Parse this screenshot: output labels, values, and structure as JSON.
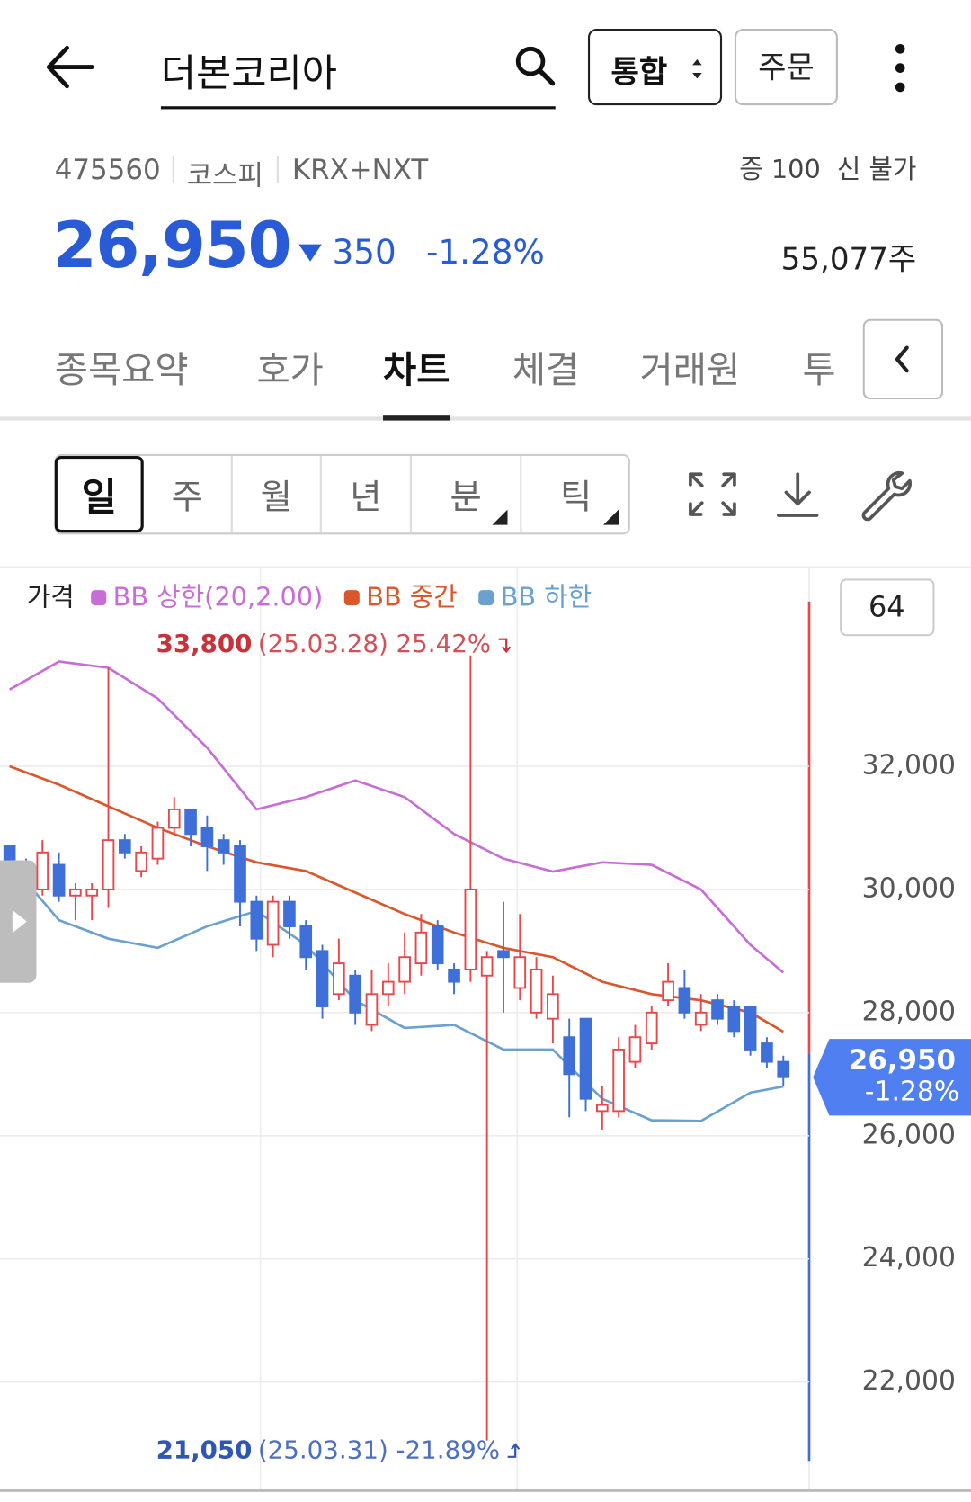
{
  "header": {
    "title": "더본코리아",
    "mode": "통합",
    "order": "주문"
  },
  "quote": {
    "code": "475560",
    "market": "코스피",
    "venue": "KRX+NXT",
    "margin": "증 100",
    "credit": "신 불가",
    "price": "26,950",
    "change": "350",
    "change_pct": "-1.28%",
    "volume": "55,077주"
  },
  "tabs": [
    "종목요약",
    "호가",
    "차트",
    "체결",
    "거래원",
    "투"
  ],
  "active_tab": 2,
  "periods": [
    "일",
    "주",
    "월",
    "년",
    "분",
    "틱"
  ],
  "active_period": 0,
  "chart_data": {
    "type": "candlestick",
    "price_label": "가격",
    "count_box": "64",
    "up_color": "#e8474c",
    "down_color": "#3f6fd8",
    "x": [
      0,
      1,
      2,
      3,
      4,
      5,
      6,
      7,
      8,
      9,
      10,
      11,
      12,
      13,
      14,
      15,
      16,
      17,
      18,
      19,
      20,
      21,
      22,
      23,
      24,
      25,
      26,
      27,
      28,
      29,
      30,
      31,
      32,
      33,
      34,
      35,
      36,
      37,
      38,
      39,
      40,
      41,
      42,
      43,
      44,
      45,
      46,
      47
    ],
    "xlim": [
      0,
      47
    ],
    "candles": {
      "open": [
        30700,
        30400,
        30000,
        30400,
        29900,
        29900,
        30000,
        30800,
        30300,
        30500,
        31000,
        31300,
        31000,
        30800,
        30700,
        29800,
        29100,
        29800,
        29400,
        29000,
        28300,
        28600,
        27800,
        28300,
        28500,
        28800,
        29400,
        28700,
        28700,
        28600,
        29000,
        28400,
        28000,
        27900,
        27600,
        27900,
        26400,
        26400,
        27200,
        27500,
        28200,
        28400,
        27800,
        28200,
        28100,
        28100,
        27500,
        27200
      ],
      "high": [
        30700,
        30500,
        30800,
        30600,
        30100,
        30100,
        33600,
        30900,
        30700,
        31100,
        31500,
        31300,
        31200,
        30900,
        30800,
        29900,
        29900,
        29900,
        29500,
        29100,
        29200,
        28700,
        28700,
        28800,
        29300,
        29600,
        29500,
        28800,
        33800,
        29000,
        29800,
        29600,
        28900,
        28600,
        27900,
        27800,
        26800,
        27600,
        27800,
        28100,
        28800,
        28700,
        28300,
        28300,
        28200,
        28100,
        27600,
        27300
      ],
      "low": [
        29400,
        29600,
        29900,
        29800,
        29500,
        29500,
        29700,
        30500,
        30200,
        30400,
        30900,
        30700,
        30300,
        30400,
        29400,
        29000,
        28900,
        29200,
        28700,
        27900,
        28200,
        27800,
        27700,
        28100,
        28300,
        28600,
        28700,
        28300,
        28500,
        21050,
        28000,
        28200,
        27900,
        27500,
        26300,
        26400,
        26100,
        26300,
        27100,
        27400,
        28100,
        27900,
        27700,
        27800,
        27600,
        27300,
        27100,
        26800
      ],
      "close": [
        30300,
        29900,
        30600,
        29900,
        30000,
        30000,
        30800,
        30600,
        30600,
        31000,
        31300,
        30900,
        30700,
        30600,
        29800,
        29200,
        29800,
        29400,
        28900,
        28100,
        28800,
        28000,
        28300,
        28500,
        28900,
        29300,
        28800,
        28500,
        30000,
        28900,
        28900,
        28900,
        28700,
        28300,
        27000,
        26600,
        26500,
        27400,
        27600,
        28000,
        28500,
        28000,
        28000,
        27900,
        27700,
        27400,
        27200,
        26950
      ]
    },
    "series": [
      {
        "name": "BB 상한(20,2.00)",
        "color": "#c86dd7",
        "x": [
          0,
          3,
          6,
          9,
          12,
          15,
          18,
          21,
          24,
          27,
          30,
          33,
          36,
          39,
          42,
          45,
          47
        ],
        "values": [
          33245,
          33700,
          33600,
          33100,
          32300,
          31300,
          31500,
          31770,
          31500,
          30900,
          30500,
          30290,
          30440,
          30400,
          30000,
          29100,
          28650
        ]
      },
      {
        "name": "BB 중간",
        "color": "#d9572b",
        "x": [
          0,
          3,
          6,
          9,
          12,
          15,
          18,
          21,
          24,
          27,
          30,
          33,
          36,
          39,
          42,
          45,
          47
        ],
        "values": [
          32000,
          31700,
          31350,
          31000,
          30700,
          30440,
          30300,
          29950,
          29600,
          29300,
          29050,
          28900,
          28500,
          28300,
          28200,
          28000,
          27690
        ]
      },
      {
        "name": "BB 하한",
        "color": "#6aa1cf",
        "x": [
          0,
          3,
          6,
          9,
          12,
          15,
          18,
          21,
          24,
          27,
          30,
          33,
          36,
          39,
          42,
          45,
          47
        ],
        "values": [
          30440,
          29500,
          29200,
          29050,
          29400,
          29650,
          29100,
          28200,
          27750,
          27800,
          27400,
          27400,
          26600,
          26250,
          26240,
          26700,
          26800
        ]
      }
    ],
    "ylim": [
      20720,
      35110
    ],
    "yticks": [
      {
        "value": 22000,
        "label": "22,000"
      },
      {
        "value": 24000,
        "label": "24,000"
      },
      {
        "value": 26000,
        "label": "26,000"
      },
      {
        "value": 28000,
        "label": "28,000"
      },
      {
        "value": 30000,
        "label": "30,000"
      },
      {
        "value": 32000,
        "label": "32,000"
      }
    ],
    "grid": true,
    "high_marker": {
      "value": 33800,
      "label": "33,800",
      "detail": "(25.03.28) 25.42%"
    },
    "low_marker": {
      "value": 21050,
      "label": "21,050",
      "detail": "(25.03.31) -21.89%"
    },
    "current": {
      "value": 26950,
      "label": "26,950",
      "change": "-1.28%"
    }
  }
}
